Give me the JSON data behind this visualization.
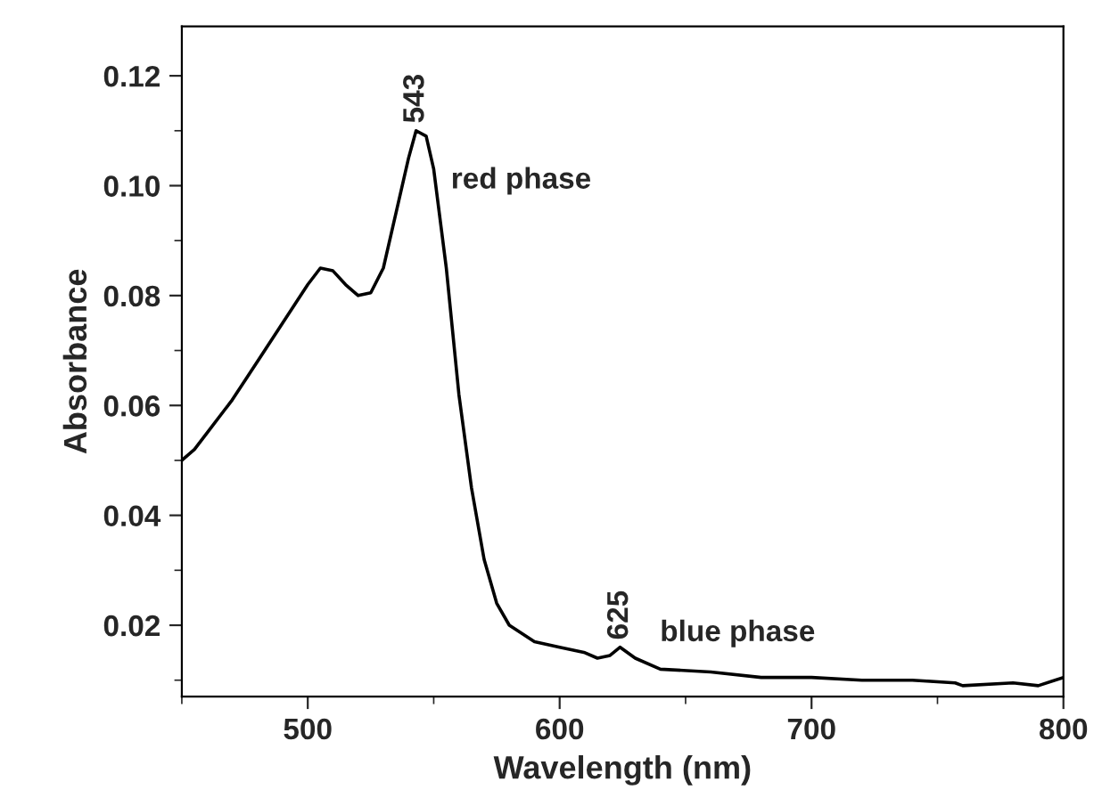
{
  "chart_data": {
    "type": "line",
    "xlabel": "Wavelength (nm)",
    "ylabel": "Absorbance",
    "xlim": [
      450,
      800
    ],
    "ylim": [
      0.007,
      0.129
    ],
    "xticks": [
      500,
      600,
      700,
      800
    ],
    "yticks": [
      0.02,
      0.04,
      0.06,
      0.08,
      {
        "value": 0.1,
        "label": "0.10"
      },
      0.12
    ],
    "x": [
      450,
      455,
      460,
      470,
      480,
      490,
      500,
      505,
      510,
      515,
      520,
      525,
      530,
      535,
      540,
      543,
      547,
      550,
      555,
      560,
      565,
      570,
      575,
      580,
      590,
      600,
      610,
      615,
      620,
      624,
      630,
      640,
      660,
      680,
      700,
      720,
      740,
      757,
      760,
      780,
      790,
      800
    ],
    "series": [
      {
        "color": "#000000",
        "values": [
          0.05,
          0.052,
          0.055,
          0.061,
          0.068,
          0.075,
          0.082,
          0.085,
          0.0845,
          0.082,
          0.08,
          0.0805,
          0.085,
          0.095,
          0.105,
          0.11,
          0.109,
          0.103,
          0.085,
          0.062,
          0.045,
          0.032,
          0.024,
          0.02,
          0.017,
          0.016,
          0.015,
          0.014,
          0.0145,
          0.016,
          0.014,
          0.012,
          0.0115,
          0.0105,
          0.0105,
          0.01,
          0.01,
          0.0095,
          0.009,
          0.0095,
          0.009,
          0.0105
        ]
      }
    ],
    "annotations": [
      {
        "text": "543",
        "x": 543,
        "y": 0.11
      },
      {
        "text": "red phase",
        "x": 547,
        "y": 0.109
      },
      {
        "text": "625",
        "x": 624,
        "y": 0.016
      },
      {
        "text": "blue phase",
        "x": 630,
        "y": 0.014
      }
    ],
    "grid": false,
    "legend": false,
    "marker": "none",
    "line_style": "solid"
  }
}
